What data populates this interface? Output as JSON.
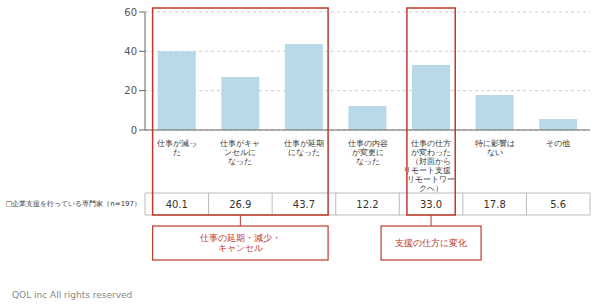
{
  "chart_data": {
    "type": "bar",
    "categories": [
      "仕事が減っ\nた",
      "仕事がキャ\nンセルに\nなった",
      "仕事が延期\nになった",
      "仕事の内容\nが変更に\nなった",
      "仕事の仕方\nが変わった\n（対面から\nリモート支援・\nリモートワー\nクへ）",
      "特に影響は\nない",
      "その他"
    ],
    "series": [
      {
        "name": "□企業支援を行っている専門家（n=197）",
        "color": "#b8d9e8",
        "values": [
          40.1,
          26.9,
          43.7,
          12.2,
          33.0,
          17.8,
          5.6
        ],
        "value_labels": [
          "40.1",
          "26.9",
          "43.7",
          "12.2",
          "33.0",
          "17.8",
          "5.6"
        ]
      }
    ],
    "ylim": [
      0,
      60
    ],
    "yticks": [
      0.0,
      20.0,
      40.0,
      60.0
    ],
    "grid": true,
    "data_labels": true,
    "annotations": [
      {
        "text": "仕事の延期・減少・\nキャンセル",
        "span": [
          0,
          2
        ],
        "color": "#c0392b"
      },
      {
        "text": "支援の仕方に変化",
        "span": [
          4,
          4
        ],
        "color": "#c0392b"
      }
    ],
    "footnote": "QOL inc  All rights reserved"
  }
}
